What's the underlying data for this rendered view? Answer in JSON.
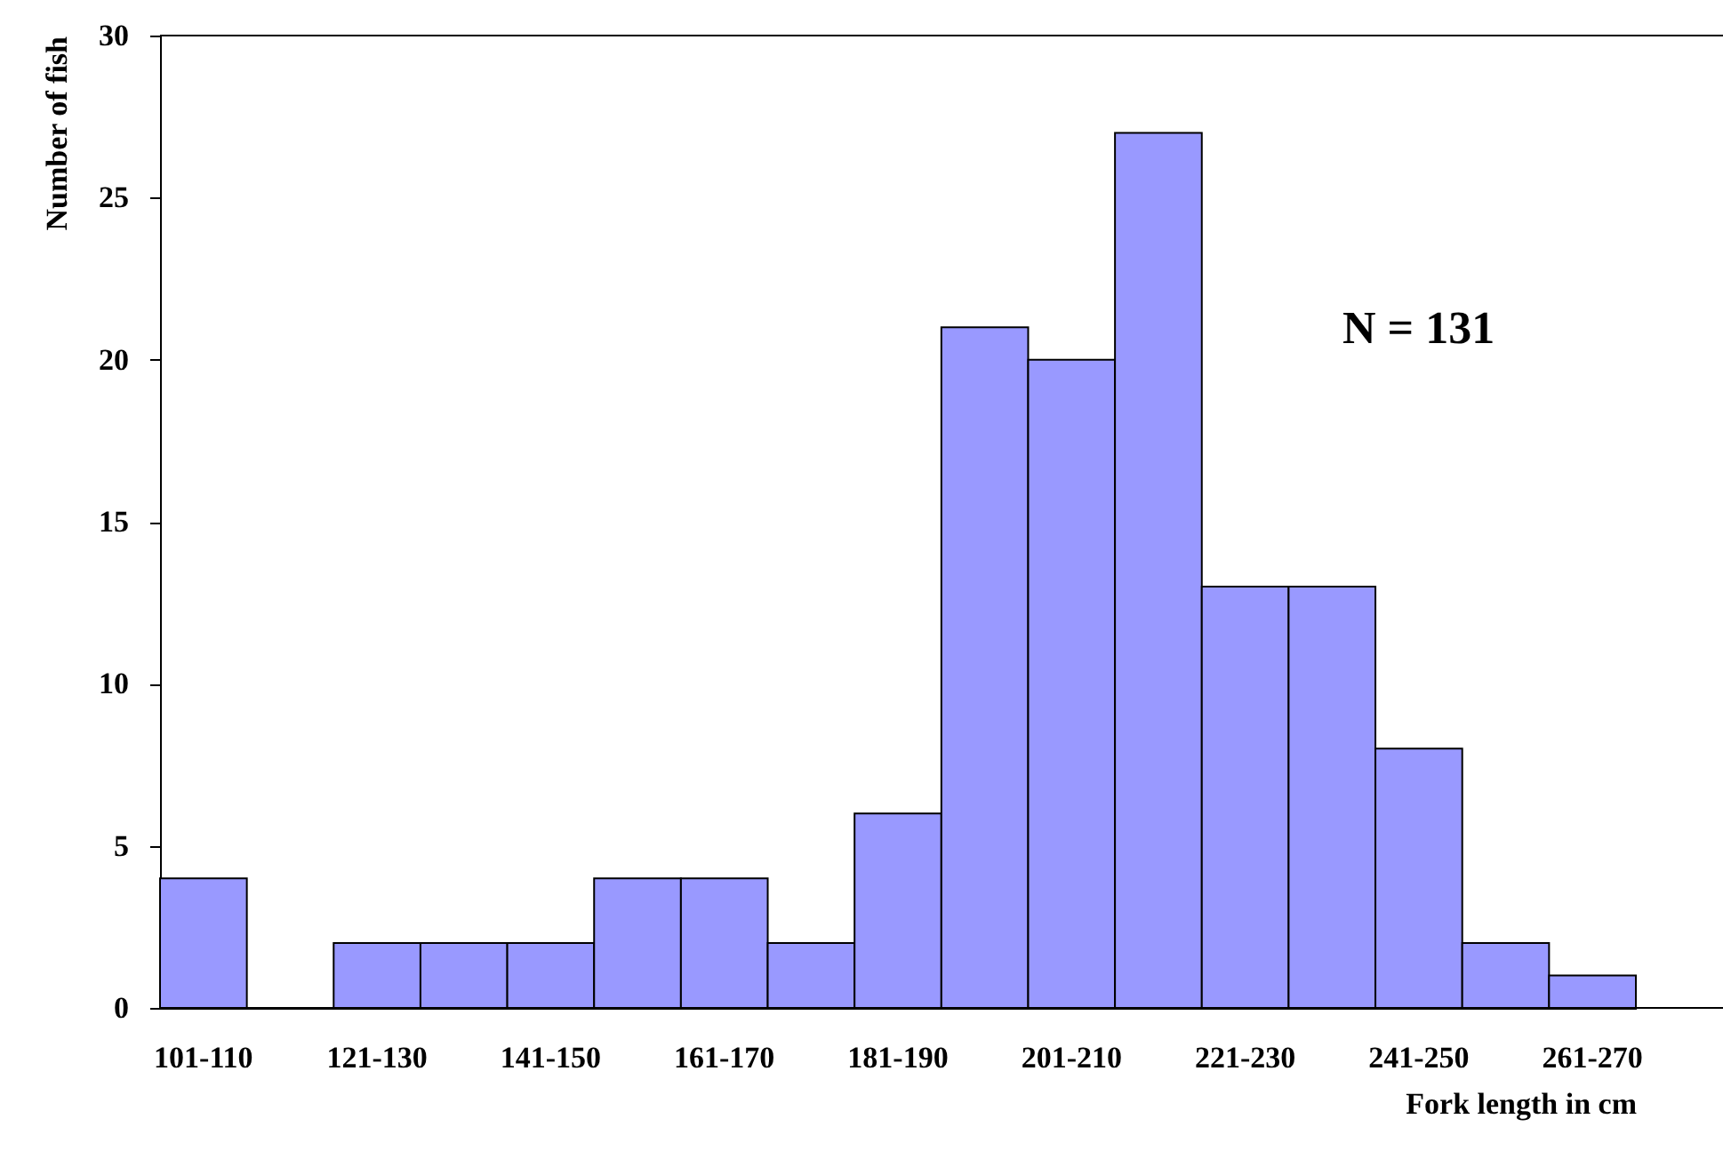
{
  "chart_data": {
    "type": "bar",
    "ylabel": "Number of fish",
    "xlabel": "Fork length in cm",
    "categories": [
      "101-110",
      null,
      "121-130",
      null,
      "141-150",
      null,
      "161-170",
      null,
      "181-190",
      null,
      "201-210",
      null,
      "221-230",
      null,
      "241-250",
      null,
      "261-270"
    ],
    "values": [
      4,
      0,
      2,
      2,
      2,
      4,
      4,
      2,
      6,
      21,
      20,
      27,
      13,
      13,
      8,
      2,
      1
    ],
    "color": "#9999ff",
    "ylim": [
      0,
      30
    ],
    "yticks": [
      0,
      5,
      10,
      15,
      20,
      25,
      30
    ],
    "grid": false,
    "annotations": [
      "N = 131"
    ]
  }
}
